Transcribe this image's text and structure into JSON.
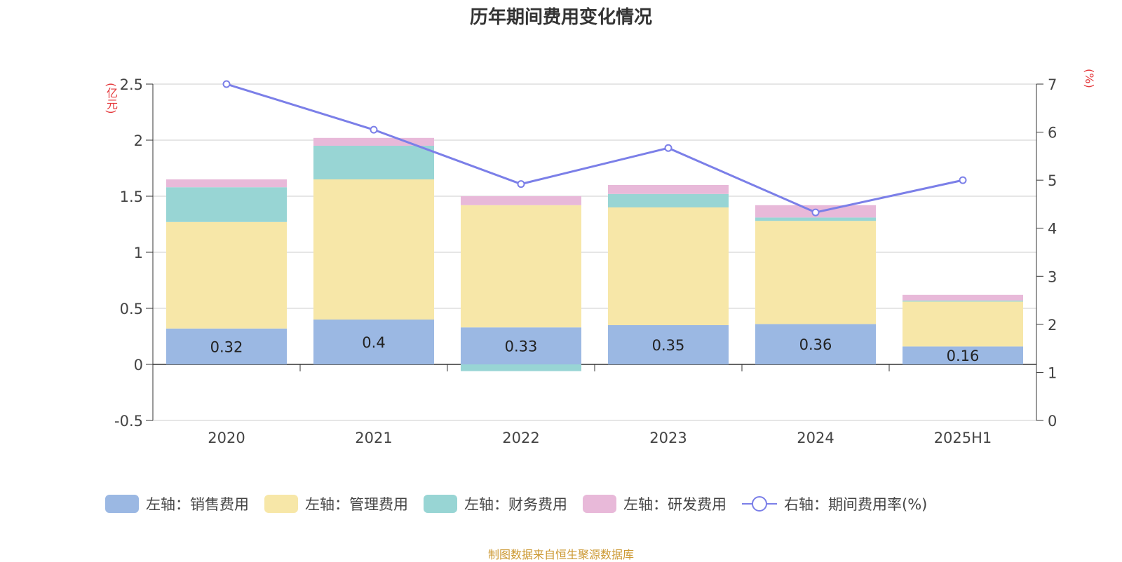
{
  "title": "历年期间费用变化情况",
  "source_note": "制图数据来自恒生聚源数据库",
  "left_unit": "(亿元)",
  "right_unit": "(%)",
  "chart_data": {
    "type": "bar",
    "stacked": true,
    "categories": [
      "2020",
      "2021",
      "2022",
      "2023",
      "2024",
      "2025H1"
    ],
    "series": [
      {
        "name": "左轴：销售费用",
        "axis": "left",
        "color": "#9bb8e3",
        "values": [
          0.32,
          0.4,
          0.33,
          0.35,
          0.36,
          0.16
        ],
        "labels": [
          "0.32",
          "0.4",
          "0.33",
          "0.35",
          "0.36",
          "0.16"
        ]
      },
      {
        "name": "左轴：管理费用",
        "axis": "left",
        "color": "#f7e7a8",
        "values": [
          0.95,
          1.25,
          1.09,
          1.05,
          0.92,
          0.4
        ]
      },
      {
        "name": "左轴：财务费用",
        "axis": "left",
        "color": "#98d5d4",
        "values": [
          0.31,
          0.3,
          -0.06,
          0.12,
          0.03,
          0.01
        ]
      },
      {
        "name": "左轴：研发费用",
        "axis": "left",
        "color": "#e8b9d9",
        "values": [
          0.07,
          0.07,
          0.08,
          0.08,
          0.11,
          0.05
        ]
      },
      {
        "name": "右轴：期间费用率(%)",
        "axis": "right",
        "type": "line",
        "color": "#7b7fe8",
        "values": [
          7.0,
          6.05,
          4.92,
          5.67,
          4.33,
          5.0
        ]
      }
    ],
    "left_axis": {
      "min": -0.5,
      "max": 2.5,
      "ticks": [
        "-0.5",
        "0",
        "0.5",
        "1",
        "1.5",
        "2",
        "2.5"
      ]
    },
    "right_axis": {
      "min": 0,
      "max": 7,
      "ticks": [
        "0",
        "1",
        "2",
        "3",
        "4",
        "5",
        "6",
        "7"
      ]
    },
    "grid": true,
    "legend_position": "bottom"
  }
}
